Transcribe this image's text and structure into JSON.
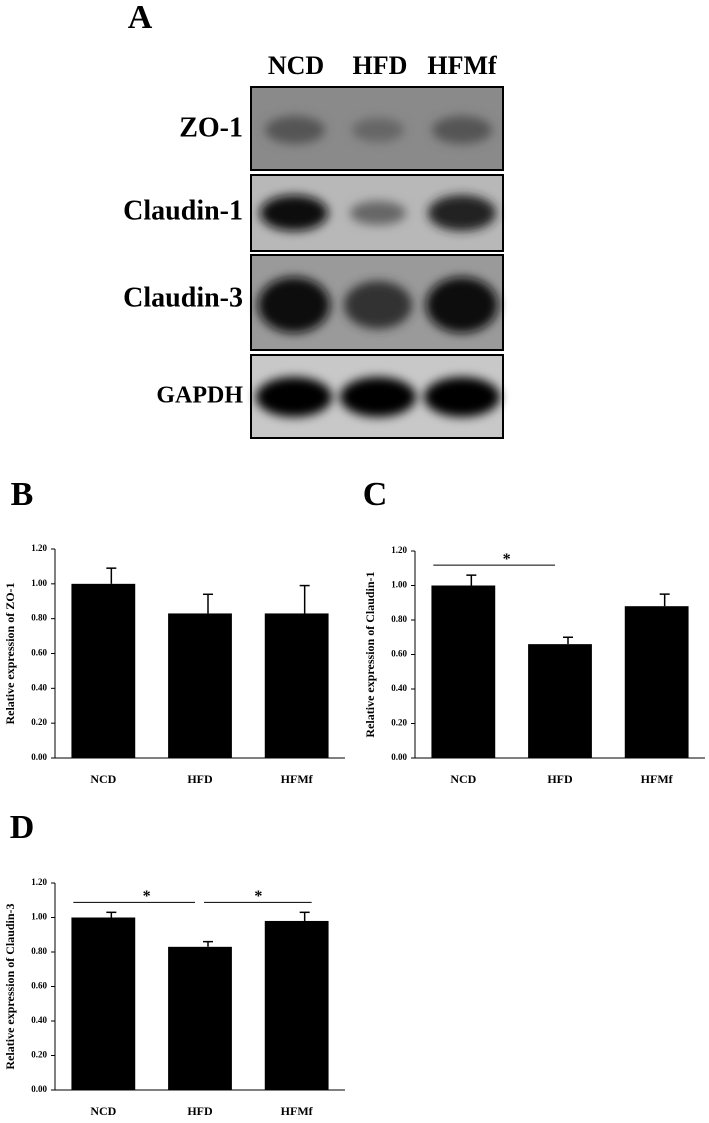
{
  "blot": {
    "label": "A",
    "lanes": [
      "NCD",
      "HFD",
      "HFMf"
    ],
    "rows": [
      "ZO-1",
      "Claudin-1",
      "Claudin-3",
      "GAPDH"
    ]
  },
  "chart_data": [
    {
      "type": "bar",
      "label": "B",
      "ylabel": "Relative expression of ZO-1",
      "categories": [
        "NCD",
        "HFD",
        "HFMf"
      ],
      "values": [
        1.0,
        0.83,
        0.83
      ],
      "errors": [
        0.09,
        0.11,
        0.16
      ],
      "color": "#000000",
      "ylim": [
        0,
        1.2
      ],
      "yticks": [
        {
          "value": 0,
          "label": "0.00"
        },
        {
          "value": 0.2,
          "label": "0.20"
        },
        {
          "value": 0.4,
          "label": "0.40"
        },
        {
          "value": 0.6,
          "label": "0.60"
        },
        {
          "value": 0.8,
          "label": "0.80"
        },
        {
          "value": 1.0,
          "label": "1.00"
        },
        {
          "value": 1.2,
          "label": "1.20"
        }
      ],
      "significance": []
    },
    {
      "type": "bar",
      "label": "C",
      "ylabel": "Relative expression of Claudin-1",
      "categories": [
        "NCD",
        "HFD",
        "HFMf"
      ],
      "values": [
        1.0,
        0.66,
        0.88
      ],
      "errors": [
        0.06,
        0.04,
        0.07
      ],
      "color": "#000000",
      "ylim": [
        0,
        1.2
      ],
      "yticks": [
        {
          "value": 0,
          "label": "0.00"
        },
        {
          "value": 0.2,
          "label": "0.20"
        },
        {
          "value": 0.4,
          "label": "0.40"
        },
        {
          "value": 0.6,
          "label": "0.60"
        },
        {
          "value": 0.8,
          "label": "0.80"
        },
        {
          "value": 1.0,
          "label": "1.00"
        },
        {
          "value": 1.2,
          "label": "1.20"
        }
      ],
      "significance": [
        {
          "label": "*",
          "pair": [
            0,
            1
          ]
        }
      ]
    },
    {
      "type": "bar",
      "label": "D",
      "ylabel": "Relative expression of Claudin-3",
      "categories": [
        "NCD",
        "HFD",
        "HFMf"
      ],
      "values": [
        1.0,
        0.83,
        0.98
      ],
      "errors": [
        0.03,
        0.03,
        0.05
      ],
      "color": "#000000",
      "ylim": [
        0,
        1.2
      ],
      "yticks": [
        {
          "value": 0,
          "label": "0.00"
        },
        {
          "value": 0.2,
          "label": "0.20"
        },
        {
          "value": 0.4,
          "label": "0.40"
        },
        {
          "value": 0.6,
          "label": "0.60"
        },
        {
          "value": 0.8,
          "label": "0.80"
        },
        {
          "value": 1.0,
          "label": "1.00"
        },
        {
          "value": 1.2,
          "label": "1.20"
        }
      ],
      "significance": [
        {
          "label": "*",
          "pair": [
            0,
            1
          ]
        },
        {
          "label": "*",
          "pair": [
            1,
            2
          ]
        }
      ]
    }
  ]
}
